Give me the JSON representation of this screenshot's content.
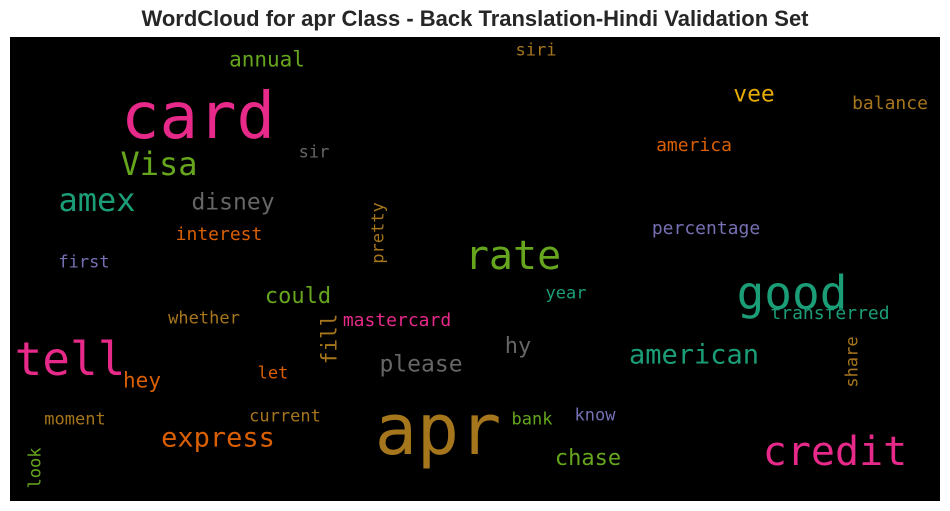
{
  "title": "WordCloud for apr Class - Back Translation-Hindi Validation Set",
  "chart_data": {
    "type": "wordcloud",
    "title": "WordCloud for apr Class - Back Translation-Hindi Validation Set",
    "background": "#000000",
    "words": [
      {
        "text": "card",
        "weight": 1.0,
        "color": "#e7298a",
        "orientation": "horizontal"
      },
      {
        "text": "apr",
        "weight": 1.0,
        "color": "#a6761d",
        "orientation": "horizontal"
      },
      {
        "text": "credit",
        "weight": 0.62,
        "color": "#e7298a",
        "orientation": "horizontal"
      },
      {
        "text": "good",
        "weight": 0.7,
        "color": "#1b9e77",
        "orientation": "horizontal"
      },
      {
        "text": "rate",
        "weight": 0.62,
        "color": "#66a61e",
        "orientation": "horizontal"
      },
      {
        "text": "tell",
        "weight": 0.7,
        "color": "#e7298a",
        "orientation": "horizontal"
      },
      {
        "text": "Visa",
        "weight": 0.5,
        "color": "#66a61e",
        "orientation": "horizontal"
      },
      {
        "text": "amex",
        "weight": 0.5,
        "color": "#1b9e77",
        "orientation": "horizontal"
      },
      {
        "text": "american",
        "weight": 0.42,
        "color": "#1b9e77",
        "orientation": "horizontal"
      },
      {
        "text": "express",
        "weight": 0.42,
        "color": "#d95f02",
        "orientation": "horizontal"
      },
      {
        "text": "disney",
        "weight": 0.36,
        "color": "#666666",
        "orientation": "horizontal"
      },
      {
        "text": "please",
        "weight": 0.36,
        "color": "#666666",
        "orientation": "horizontal"
      },
      {
        "text": "vee",
        "weight": 0.36,
        "color": "#e6ab02",
        "orientation": "horizontal"
      },
      {
        "text": "could",
        "weight": 0.34,
        "color": "#66a61e",
        "orientation": "horizontal"
      },
      {
        "text": "chase",
        "weight": 0.34,
        "color": "#66a61e",
        "orientation": "horizontal"
      },
      {
        "text": "hy",
        "weight": 0.34,
        "color": "#666666",
        "orientation": "horizontal"
      },
      {
        "text": "annual",
        "weight": 0.32,
        "color": "#66a61e",
        "orientation": "horizontal"
      },
      {
        "text": "hey",
        "weight": 0.32,
        "color": "#d95f02",
        "orientation": "horizontal"
      },
      {
        "text": "fill",
        "weight": 0.32,
        "color": "#a6761d",
        "orientation": "vertical"
      },
      {
        "text": "transferred",
        "weight": 0.28,
        "color": "#1b9e77",
        "orientation": "horizontal"
      },
      {
        "text": "balance",
        "weight": 0.28,
        "color": "#a6761d",
        "orientation": "horizontal"
      },
      {
        "text": "america",
        "weight": 0.28,
        "color": "#d95f02",
        "orientation": "horizontal"
      },
      {
        "text": "percentage",
        "weight": 0.28,
        "color": "#7570b3",
        "orientation": "horizontal"
      },
      {
        "text": "interest",
        "weight": 0.28,
        "color": "#d95f02",
        "orientation": "horizontal"
      },
      {
        "text": "mastercard",
        "weight": 0.28,
        "color": "#e7298a",
        "orientation": "horizontal"
      },
      {
        "text": "whether",
        "weight": 0.27,
        "color": "#a6761d",
        "orientation": "horizontal"
      },
      {
        "text": "pretty",
        "weight": 0.27,
        "color": "#a6761d",
        "orientation": "vertical"
      },
      {
        "text": "share",
        "weight": 0.27,
        "color": "#a6761d",
        "orientation": "vertical"
      },
      {
        "text": "look",
        "weight": 0.27,
        "color": "#66a61e",
        "orientation": "vertical"
      },
      {
        "text": "current",
        "weight": 0.27,
        "color": "#a6761d",
        "orientation": "horizontal"
      },
      {
        "text": "moment",
        "weight": 0.27,
        "color": "#a6761d",
        "orientation": "horizontal"
      },
      {
        "text": "bank",
        "weight": 0.27,
        "color": "#66a61e",
        "orientation": "horizontal"
      },
      {
        "text": "know",
        "weight": 0.27,
        "color": "#7570b3",
        "orientation": "horizontal"
      },
      {
        "text": "year",
        "weight": 0.27,
        "color": "#1b9e77",
        "orientation": "horizontal"
      },
      {
        "text": "let",
        "weight": 0.27,
        "color": "#d95f02",
        "orientation": "horizontal"
      },
      {
        "text": "first",
        "weight": 0.27,
        "color": "#7570b3",
        "orientation": "horizontal"
      },
      {
        "text": "sir",
        "weight": 0.27,
        "color": "#666666",
        "orientation": "horizontal"
      },
      {
        "text": "siri",
        "weight": 0.27,
        "color": "#a6761d",
        "orientation": "horizontal"
      }
    ]
  }
}
